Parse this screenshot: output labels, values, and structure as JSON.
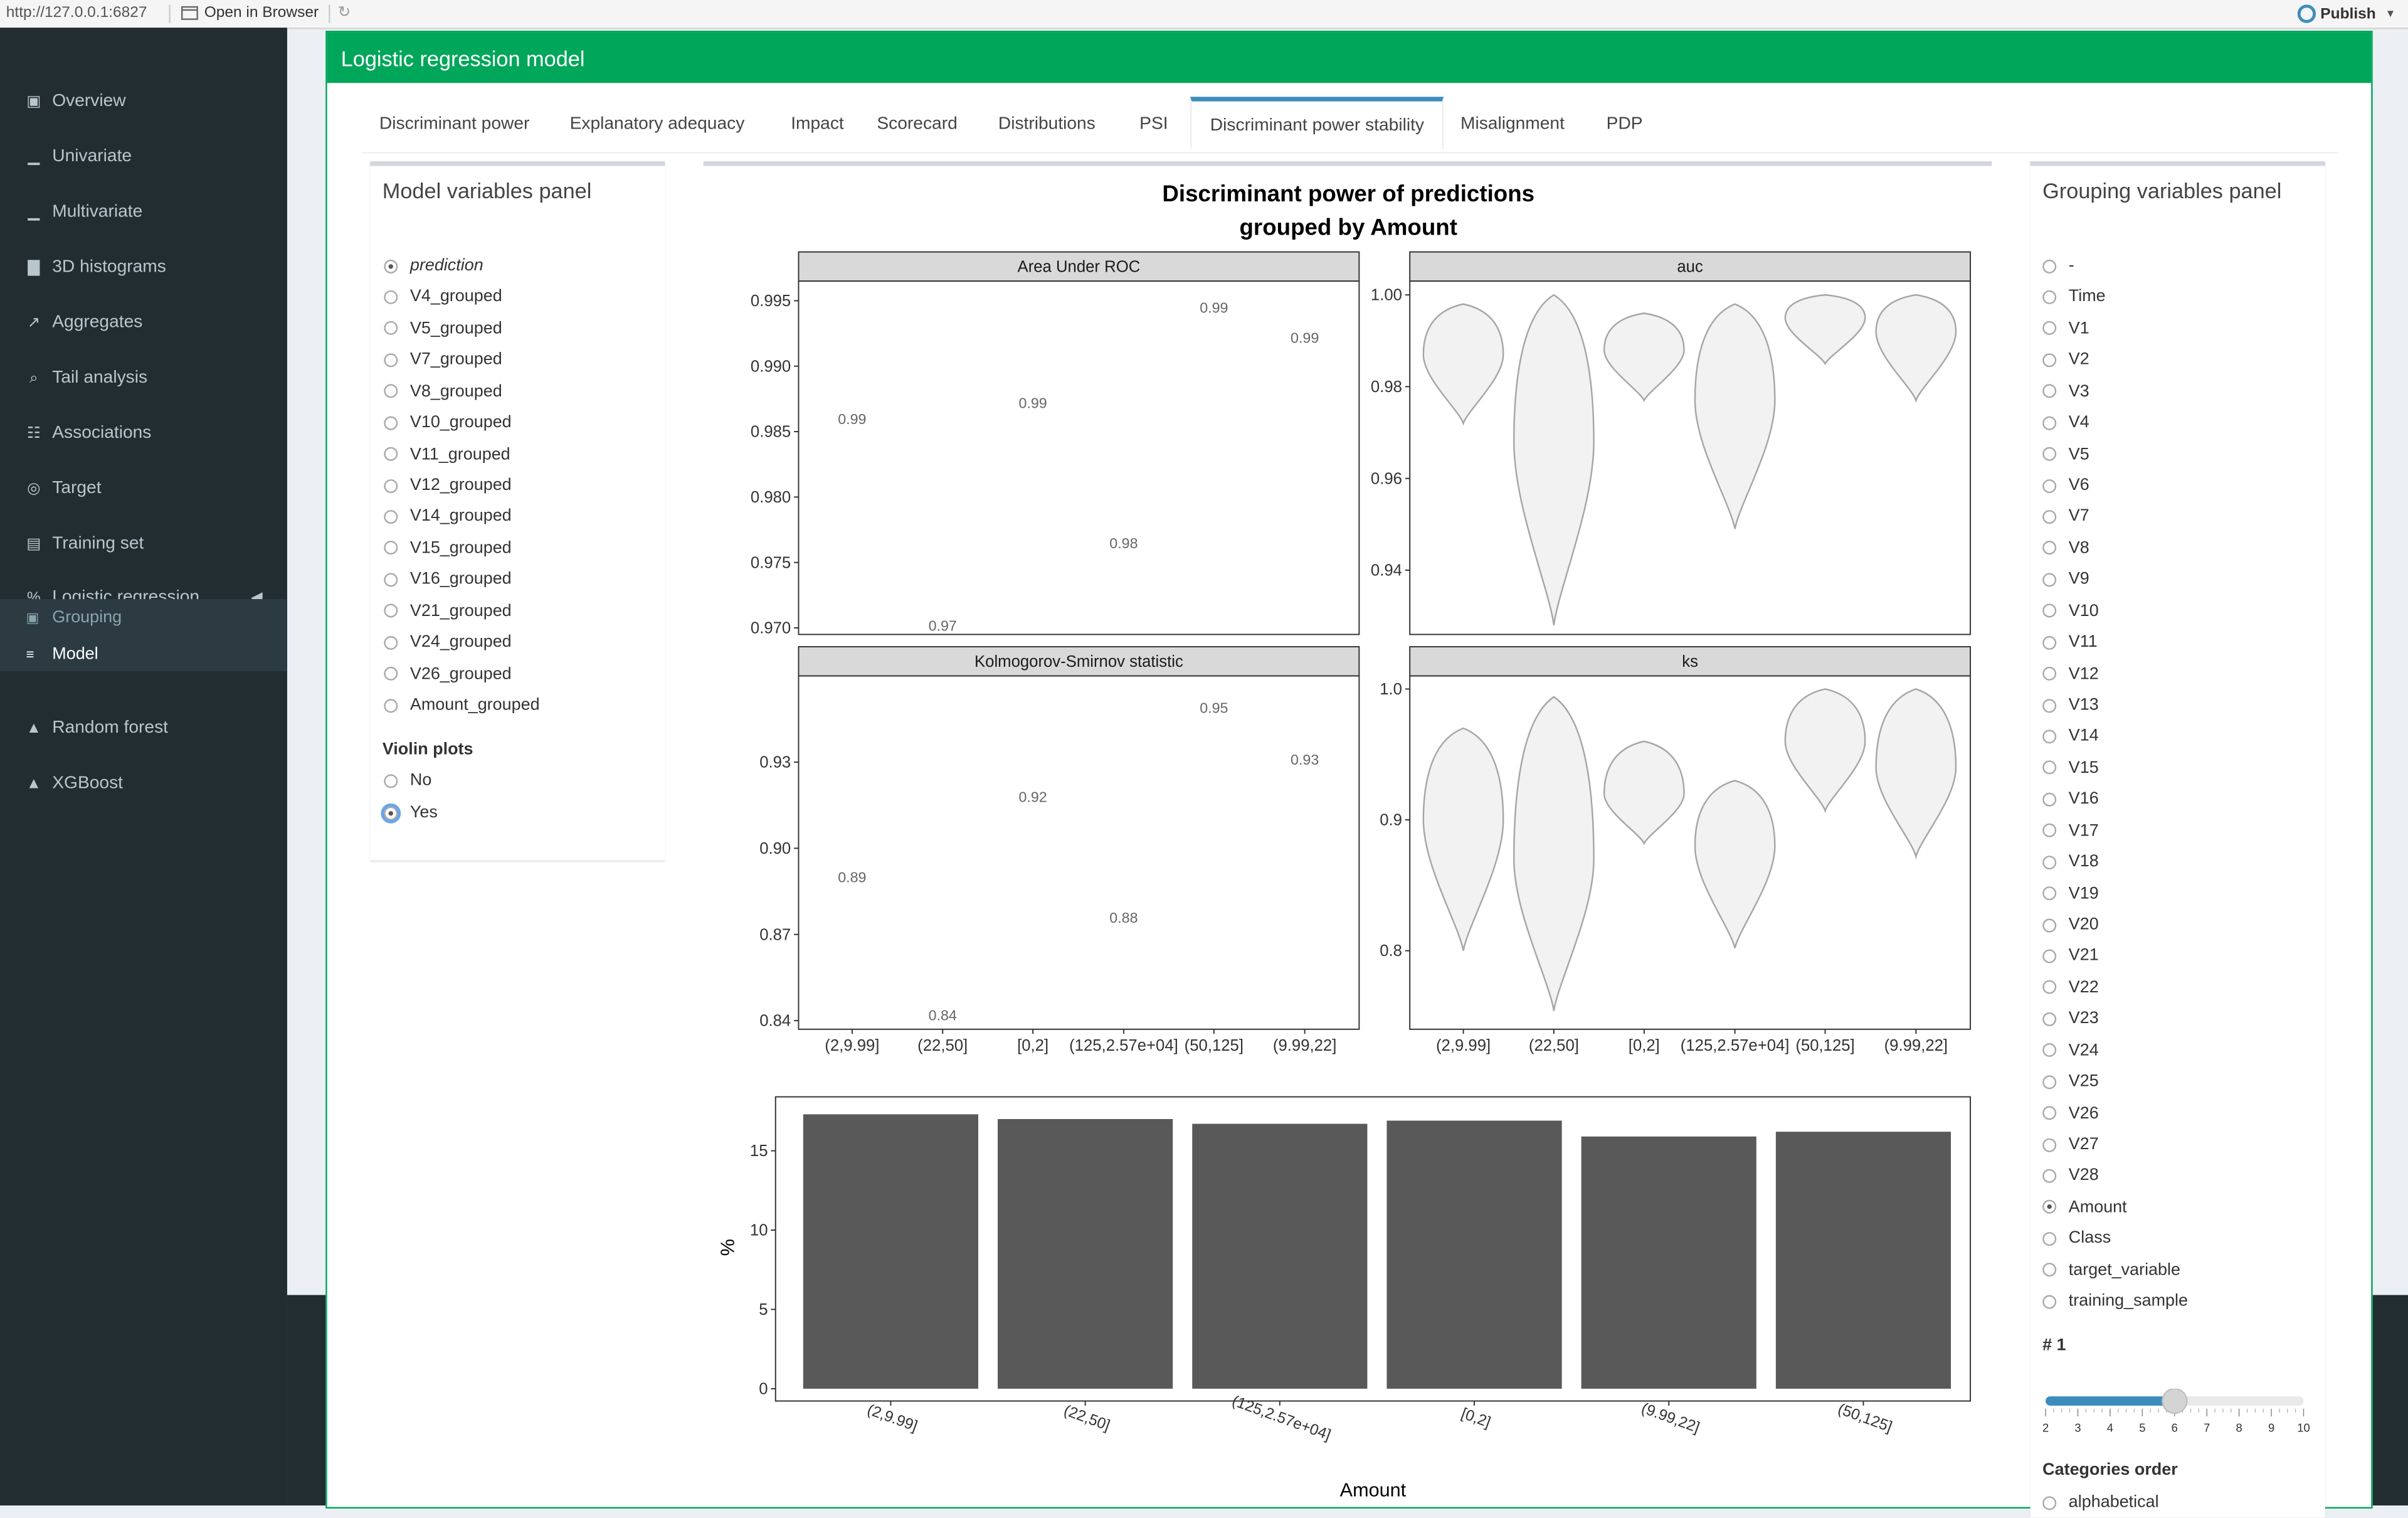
{
  "topbar": {
    "url": "http://127.0.0.1:6827",
    "open_browser": "Open in Browser",
    "publish": "Publish"
  },
  "sidebar": {
    "items": [
      {
        "label": "Overview",
        "icon": "binoculars-icon"
      },
      {
        "label": "Univariate",
        "icon": "area-chart-icon"
      },
      {
        "label": "Multivariate",
        "icon": "area-chart-icon"
      },
      {
        "label": "3D histograms",
        "icon": "bar-chart-icon"
      },
      {
        "label": "Aggregates",
        "icon": "line-chart-icon"
      },
      {
        "label": "Tail analysis",
        "icon": "search-icon"
      },
      {
        "label": "Associations",
        "icon": "sitemap-icon"
      },
      {
        "label": "Target",
        "icon": "bullseye-icon"
      },
      {
        "label": "Training set",
        "icon": "book-icon"
      },
      {
        "label": "Logistic regression",
        "icon": "percent-icon"
      },
      {
        "label": "Random forest",
        "icon": "tree-icon"
      },
      {
        "label": "XGBoost",
        "icon": "tree-icon"
      }
    ],
    "subitems": [
      {
        "label": "Grouping",
        "icon": "object-group-icon"
      },
      {
        "label": "Model",
        "icon": "sliders-icon"
      }
    ]
  },
  "box": {
    "title": "Logistic regression model"
  },
  "tabs": [
    "Discriminant power",
    "Explanatory adequacy",
    "Impact",
    "Scorecard",
    "Distributions",
    "PSI",
    "Discriminant power stability",
    "Misalignment",
    "PDP"
  ],
  "model_panel": {
    "title": "Model variables panel",
    "variables": [
      "prediction",
      "V4_grouped",
      "V5_grouped",
      "V7_grouped",
      "V8_grouped",
      "V10_grouped",
      "V11_grouped",
      "V12_grouped",
      "V14_grouped",
      "V15_grouped",
      "V16_grouped",
      "V21_grouped",
      "V24_grouped",
      "V26_grouped",
      "Amount_grouped"
    ],
    "selected": "prediction",
    "violin_label": "Violin plots",
    "violin_options": [
      "No",
      "Yes"
    ],
    "violin_selected": "Yes"
  },
  "grouping_panel": {
    "title": "Grouping variables panel",
    "variables": [
      "-",
      "Time",
      "V1",
      "V2",
      "V3",
      "V4",
      "V5",
      "V6",
      "V7",
      "V8",
      "V9",
      "V10",
      "V11",
      "V12",
      "V13",
      "V14",
      "V15",
      "V16",
      "V17",
      "V18",
      "V19",
      "V20",
      "V21",
      "V22",
      "V23",
      "V24",
      "V25",
      "V26",
      "V27",
      "V28",
      "Amount",
      "Class",
      "target_variable",
      "training_sample"
    ],
    "selected": "Amount",
    "slider_label": "# 1",
    "slider_value": 6,
    "slider_min": 2,
    "slider_max": 10,
    "slider_ticks": [
      "2",
      "3",
      "4",
      "5",
      "6",
      "7",
      "8",
      "9",
      "10"
    ],
    "order_label": "Categories order",
    "order_first": "alphabetical"
  },
  "colors": {
    "sidebar": "#222d32",
    "header": "#00a65a",
    "accent": "#3c8dbc",
    "bar": "#595959"
  },
  "chart_data": [
    {
      "type": "scatter",
      "title": "Discriminant power of predictions\ngrouped by Amount",
      "panel": "Area Under ROC",
      "categories": [
        "(2,9.99]",
        "(22,50]",
        "[0,2]",
        "(125,2.57e+04]",
        "(50,125]",
        "(9.99,22]"
      ],
      "values": [
        0.986,
        0.9702,
        0.9872,
        0.9765,
        0.9945,
        0.9922
      ],
      "labels": [
        "0.99",
        "0.97",
        "0.99",
        "0.98",
        "0.99",
        "0.99"
      ],
      "yticks": [
        "0.970",
        "0.975",
        "0.980",
        "0.985",
        "0.990",
        "0.995"
      ],
      "ylim": [
        0.9695,
        0.9965
      ]
    },
    {
      "type": "violin",
      "panel": "auc",
      "categories": [
        "(2,9.99]",
        "(22,50]",
        "[0,2]",
        "(125,2.57e+04]",
        "(50,125]",
        "(9.99,22]"
      ],
      "ranges": [
        [
          0.972,
          0.998
        ],
        [
          0.928,
          1.0
        ],
        [
          0.977,
          0.996
        ],
        [
          0.949,
          0.998
        ],
        [
          0.985,
          1.0
        ],
        [
          0.977,
          1.0
        ]
      ],
      "medians": [
        0.987,
        0.968,
        0.988,
        0.977,
        0.995,
        0.992
      ],
      "yticks": [
        "0.94",
        "0.96",
        "0.98",
        "1.00"
      ],
      "ylim": [
        0.926,
        1.003
      ]
    },
    {
      "type": "scatter",
      "panel": "Kolmogorov-Smirnov statistic",
      "categories": [
        "(2,9.99]",
        "(22,50]",
        "[0,2]",
        "(125,2.57e+04]",
        "(50,125]",
        "(9.99,22]"
      ],
      "values": [
        0.89,
        0.842,
        0.918,
        0.876,
        0.949,
        0.931
      ],
      "labels": [
        "0.89",
        "0.84",
        "0.92",
        "0.88",
        "0.95",
        "0.93"
      ],
      "yticks": [
        "0.84",
        "0.87",
        "0.90",
        "0.93"
      ],
      "ylim": [
        0.837,
        0.96
      ]
    },
    {
      "type": "violin",
      "panel": "ks",
      "categories": [
        "(2,9.99]",
        "(22,50]",
        "[0,2]",
        "(125,2.57e+04]",
        "(50,125]",
        "(9.99,22]"
      ],
      "ranges": [
        [
          0.8,
          0.97
        ],
        [
          0.754,
          0.994
        ],
        [
          0.882,
          0.96
        ],
        [
          0.802,
          0.93
        ],
        [
          0.907,
          1.0
        ],
        [
          0.872,
          1.0
        ]
      ],
      "medians": [
        0.9,
        0.87,
        0.92,
        0.88,
        0.96,
        0.94
      ],
      "yticks": [
        "0.8",
        "0.9",
        "1.0"
      ],
      "ylim": [
        0.74,
        1.01
      ]
    },
    {
      "type": "bar",
      "categories": [
        "(2,9.99]",
        "(22,50]",
        "(125,2.57e+04]",
        "[0,2]",
        "(9.99,22]",
        "(50,125]"
      ],
      "values": [
        17.3,
        17.0,
        16.7,
        16.9,
        15.9,
        16.2
      ],
      "yticks": [
        "0",
        "5",
        "10",
        "15"
      ],
      "ylim": [
        0,
        18.4
      ],
      "xlabel": "Amount",
      "ylabel": "%"
    }
  ]
}
